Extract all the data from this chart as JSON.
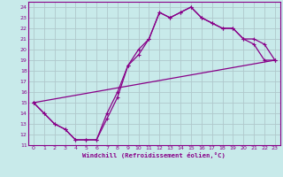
{
  "xlabel": "Windchill (Refroidissement éolien,°C)",
  "bg_color": "#c8eaea",
  "grid_color": "#b0c8cc",
  "line_color": "#880088",
  "xlim": [
    -0.5,
    23.5
  ],
  "ylim": [
    11,
    24.5
  ],
  "xticks": [
    0,
    1,
    2,
    3,
    4,
    5,
    6,
    7,
    8,
    9,
    10,
    11,
    12,
    13,
    14,
    15,
    16,
    17,
    18,
    19,
    20,
    21,
    22,
    23
  ],
  "yticks": [
    11,
    12,
    13,
    14,
    15,
    16,
    17,
    18,
    19,
    20,
    21,
    22,
    23,
    24
  ],
  "line1_x": [
    0,
    1,
    2,
    3,
    4,
    5,
    6,
    7,
    8,
    9,
    10,
    11,
    12,
    13,
    14,
    15,
    16,
    17,
    18,
    19,
    20,
    21,
    22,
    23
  ],
  "line1_y": [
    15,
    14,
    13,
    12.5,
    11.5,
    11.5,
    11.5,
    13.5,
    15.5,
    18.5,
    19.5,
    21,
    23.5,
    23,
    23.5,
    24,
    23,
    22.5,
    22,
    22,
    21,
    20.5,
    19,
    19
  ],
  "line2_x": [
    0,
    1,
    2,
    3,
    4,
    5,
    6,
    7,
    8,
    9,
    10,
    11,
    12,
    13,
    14,
    15,
    16,
    17,
    18,
    19,
    20,
    21,
    22,
    23
  ],
  "line2_y": [
    15,
    14,
    13,
    12.5,
    11.5,
    11.5,
    11.5,
    14,
    16,
    18.5,
    20,
    21,
    23.5,
    23,
    23.5,
    24,
    23,
    22.5,
    22,
    22,
    21,
    21,
    20.5,
    19
  ],
  "line3_x": [
    0,
    23
  ],
  "line3_y": [
    15,
    19
  ]
}
